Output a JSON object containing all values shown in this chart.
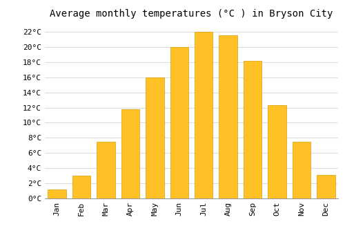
{
  "title": "Average monthly temperatures (°C ) in Bryson City",
  "months": [
    "Jan",
    "Feb",
    "Mar",
    "Apr",
    "May",
    "Jun",
    "Jul",
    "Aug",
    "Sep",
    "Oct",
    "Nov",
    "Dec"
  ],
  "values": [
    1.2,
    3.0,
    7.5,
    11.8,
    16.0,
    20.0,
    22.0,
    21.5,
    18.2,
    12.3,
    7.5,
    3.1
  ],
  "bar_color": "#FFC125",
  "bar_edge_color": "#D4A000",
  "background_color": "#FFFFFF",
  "grid_color": "#DDDDDD",
  "ylim": [
    0,
    23
  ],
  "yticks": [
    0,
    2,
    4,
    6,
    8,
    10,
    12,
    14,
    16,
    18,
    20,
    22
  ],
  "title_fontsize": 10,
  "tick_fontsize": 8,
  "font_family": "monospace"
}
